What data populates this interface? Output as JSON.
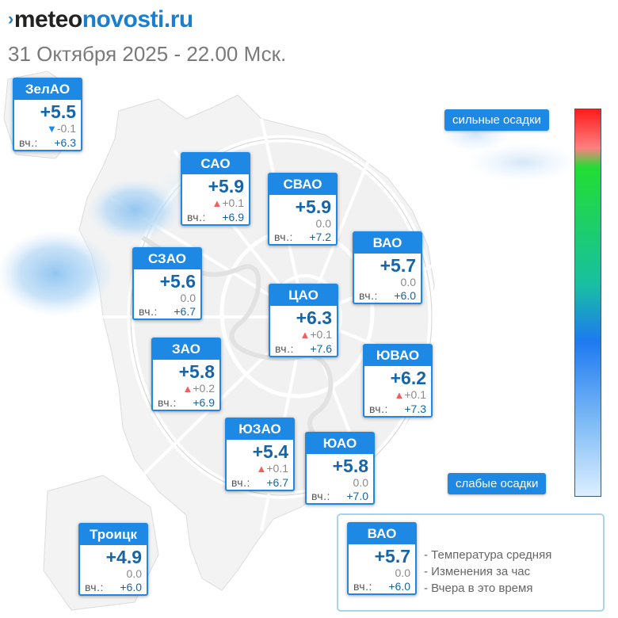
{
  "brand": {
    "part1": "meteo",
    "part2": "novosti.ru",
    "chevron": "›"
  },
  "datetime": "31 Октября 2025 - 22.00 Мск.",
  "labels": {
    "yesterday_prefix": "вч.:",
    "up_arrow": "▲",
    "down_arrow": "▼"
  },
  "districts": [
    {
      "id": "zelao",
      "name": "ЗелАО",
      "temp": "+5.5",
      "change": "-0.1",
      "trend": "down",
      "yesterday": "+6.3"
    },
    {
      "id": "sao",
      "name": "САО",
      "temp": "+5.9",
      "change": "+0.1",
      "trend": "up",
      "yesterday": "+6.9"
    },
    {
      "id": "svao",
      "name": "СВАО",
      "temp": "+5.9",
      "change": "0.0",
      "trend": "none",
      "yesterday": "+7.2"
    },
    {
      "id": "vao",
      "name": "ВАО",
      "temp": "+5.7",
      "change": "0.0",
      "trend": "none",
      "yesterday": "+6.0"
    },
    {
      "id": "szao",
      "name": "СЗАО",
      "temp": "+5.6",
      "change": "0.0",
      "trend": "none",
      "yesterday": "+6.7"
    },
    {
      "id": "cao",
      "name": "ЦАО",
      "temp": "+6.3",
      "change": "+0.1",
      "trend": "up",
      "yesterday": "+7.6"
    },
    {
      "id": "zao",
      "name": "ЗАО",
      "temp": "+5.8",
      "change": "+0.2",
      "trend": "up",
      "yesterday": "+6.9"
    },
    {
      "id": "yuvao",
      "name": "ЮВАО",
      "temp": "+6.2",
      "change": "+0.1",
      "trend": "up",
      "yesterday": "+7.3"
    },
    {
      "id": "yuzao",
      "name": "ЮЗАО",
      "temp": "+5.4",
      "change": "+0.1",
      "trend": "up",
      "yesterday": "+6.7"
    },
    {
      "id": "yuao",
      "name": "ЮАО",
      "temp": "+5.8",
      "change": "0.0",
      "trend": "none",
      "yesterday": "+7.0"
    },
    {
      "id": "troitsk",
      "name": "Троицк",
      "temp": "+4.9",
      "change": "0.0",
      "trend": "none",
      "yesterday": "+6.0"
    }
  ],
  "precip_scale": {
    "top_label": "сильные осадки",
    "bottom_label": "слабые осадки",
    "colors": [
      "#ff1a1a",
      "#22dd33",
      "#1e7af0",
      "#dcefff"
    ]
  },
  "legend": {
    "sample": {
      "name": "ВАО",
      "temp": "+5.7",
      "change": "0.0",
      "yesterday": "+6.0"
    },
    "lines": [
      "- Температура средняя",
      "- Изменения за час",
      "- Вчера в это время"
    ]
  },
  "colors": {
    "accent": "#1e88e5",
    "temp_text": "#1565a8",
    "up": "#f06060",
    "down": "#1e88e5"
  }
}
